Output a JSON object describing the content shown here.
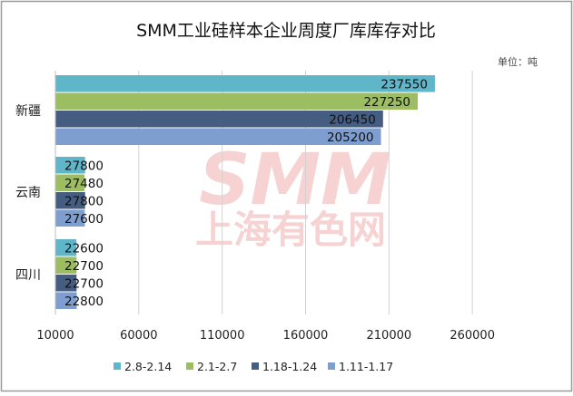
{
  "chart_data": {
    "type": "bar",
    "orientation": "horizontal",
    "title": "SMM工业硅样本企业周度厂库库存对比",
    "unit_label": "单位：吨",
    "watermark": {
      "line1": "SMM",
      "line2": "上海有色网"
    },
    "categories": [
      "新疆",
      "云南",
      "四川"
    ],
    "series": [
      {
        "name": "2.8-2.14",
        "color": "#5fb6c9",
        "values": [
          237550,
          27800,
          22600
        ]
      },
      {
        "name": "2.1-2.7",
        "color": "#9dbd63",
        "values": [
          227250,
          27480,
          22700
        ]
      },
      {
        "name": "1.18-1.24",
        "color": "#445d80",
        "values": [
          206450,
          27800,
          22700
        ]
      },
      {
        "name": "1.11-1.17",
        "color": "#7e9ed0",
        "values": [
          205200,
          27600,
          22800
        ]
      }
    ],
    "xlim": [
      10000,
      310000
    ],
    "xticks": [
      "10000",
      "60000",
      "110000",
      "160000",
      "210000",
      "260000"
    ],
    "xtick_values": [
      10000,
      60000,
      110000,
      160000,
      210000,
      260000
    ],
    "grid": true,
    "legend_position": "bottom"
  }
}
